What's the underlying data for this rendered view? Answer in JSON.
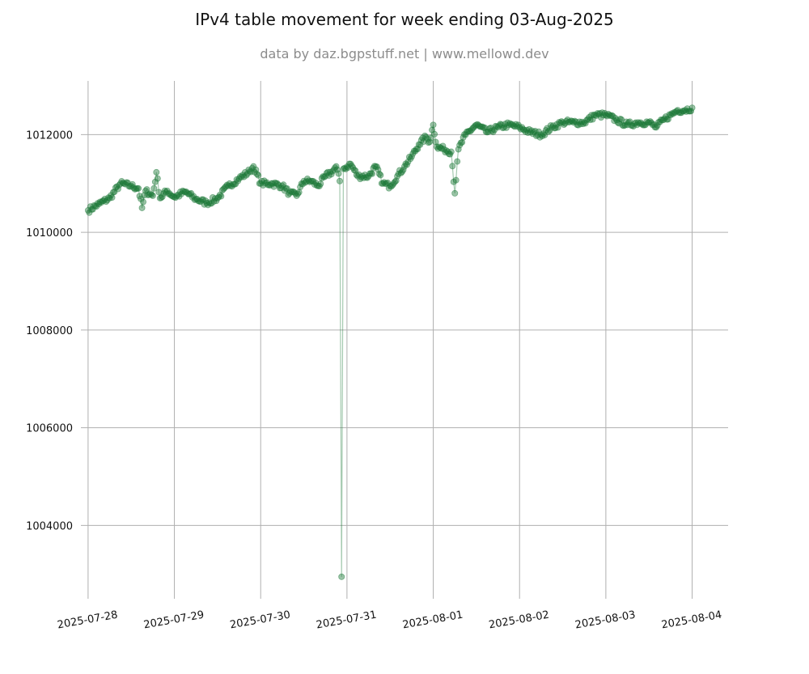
{
  "chart_data": {
    "type": "scatter",
    "title": "IPv4 table movement for week ending 03-Aug-2025",
    "subtitle": "data by daz.bgpstuff.net | www.mellowd.dev",
    "xlabel": "",
    "ylabel": "",
    "x_ticks": [
      "2025-07-28",
      "2025-07-29",
      "2025-07-30",
      "2025-07-31",
      "2025-08-01",
      "2025-08-02",
      "2025-08-03",
      "2025-08-04"
    ],
    "y_ticks": [
      1004000,
      1006000,
      1008000,
      1010000,
      1012000
    ],
    "xlim": [
      "2025-07-27 22:00",
      "2025-08-04 10:00"
    ],
    "ylim": [
      1002500,
      1013100
    ],
    "grid": true,
    "marker_color": "#1e7a3a",
    "subtitle_color": "#8c8c8c",
    "series": [
      {
        "points": [
          [
            "2025-07-28 00:00",
            1010450
          ],
          [
            "2025-07-28 03:00",
            1010580
          ],
          [
            "2025-07-28 06:00",
            1010700
          ],
          [
            "2025-07-28 09:00",
            1011000
          ],
          [
            "2025-07-28 12:00",
            1010950
          ],
          [
            "2025-07-28 14:00",
            1010900
          ],
          [
            "2025-07-28 15:00",
            1010500
          ],
          [
            "2025-07-28 16:00",
            1010850
          ],
          [
            "2025-07-28 18:00",
            1010750
          ],
          [
            "2025-07-28 19:00",
            1011230
          ],
          [
            "2025-07-28 20:00",
            1010700
          ],
          [
            "2025-07-28 22:00",
            1010850
          ],
          [
            "2025-07-29 00:00",
            1010720
          ],
          [
            "2025-07-29 03:00",
            1010830
          ],
          [
            "2025-07-29 06:00",
            1010680
          ],
          [
            "2025-07-29 09:00",
            1010600
          ],
          [
            "2025-07-29 12:00",
            1010700
          ],
          [
            "2025-07-29 15:00",
            1010950
          ],
          [
            "2025-07-29 18:00",
            1011100
          ],
          [
            "2025-07-29 21:00",
            1011250
          ],
          [
            "2025-07-29 22:00",
            1011350
          ],
          [
            "2025-07-30 00:00",
            1011000
          ],
          [
            "2025-07-30 03:00",
            1011000
          ],
          [
            "2025-07-30 06:00",
            1010950
          ],
          [
            "2025-07-30 08:00",
            1010800
          ],
          [
            "2025-07-30 10:00",
            1010750
          ],
          [
            "2025-07-30 12:00",
            1011050
          ],
          [
            "2025-07-30 14:00",
            1011050
          ],
          [
            "2025-07-30 16:00",
            1010950
          ],
          [
            "2025-07-30 18:00",
            1011150
          ],
          [
            "2025-07-30 20:00",
            1011250
          ],
          [
            "2025-07-30 21:00",
            1011350
          ],
          [
            "2025-07-30 22:00",
            1011050
          ],
          [
            "2025-07-30 22:30",
            1002950
          ],
          [
            "2025-07-30 23:00",
            1011300
          ],
          [
            "2025-07-31 01:00",
            1011400
          ],
          [
            "2025-07-31 03:00",
            1011150
          ],
          [
            "2025-07-31 06:00",
            1011150
          ],
          [
            "2025-07-31 08:00",
            1011350
          ],
          [
            "2025-07-31 10:00",
            1011000
          ],
          [
            "2025-07-31 12:00",
            1010950
          ],
          [
            "2025-07-31 14:00",
            1011150
          ],
          [
            "2025-07-31 16:00",
            1011350
          ],
          [
            "2025-07-31 18:00",
            1011550
          ],
          [
            "2025-07-31 20:00",
            1011800
          ],
          [
            "2025-07-31 22:00",
            1011950
          ],
          [
            "2025-07-31 23:00",
            1011850
          ],
          [
            "2025-08-01 00:00",
            1012200
          ],
          [
            "2025-08-01 01:00",
            1011750
          ],
          [
            "2025-08-01 03:00",
            1011700
          ],
          [
            "2025-08-01 05:00",
            1011650
          ],
          [
            "2025-08-01 06:00",
            1010800
          ],
          [
            "2025-08-01 07:00",
            1011700
          ],
          [
            "2025-08-01 09:00",
            1012000
          ],
          [
            "2025-08-01 12:00",
            1012200
          ],
          [
            "2025-08-01 15:00",
            1012050
          ],
          [
            "2025-08-01 18:00",
            1012150
          ],
          [
            "2025-08-01 21:00",
            1012200
          ],
          [
            "2025-08-02 00:00",
            1012150
          ],
          [
            "2025-08-02 03:00",
            1012050
          ],
          [
            "2025-08-02 06:00",
            1012000
          ],
          [
            "2025-08-02 09:00",
            1012150
          ],
          [
            "2025-08-02 12:00",
            1012250
          ],
          [
            "2025-08-02 15:00",
            1012250
          ],
          [
            "2025-08-02 18:00",
            1012250
          ],
          [
            "2025-08-02 21:00",
            1012400
          ],
          [
            "2025-08-03 00:00",
            1012400
          ],
          [
            "2025-08-03 03:00",
            1012300
          ],
          [
            "2025-08-03 06:00",
            1012200
          ],
          [
            "2025-08-03 09:00",
            1012250
          ],
          [
            "2025-08-03 12:00",
            1012250
          ],
          [
            "2025-08-03 14:00",
            1012150
          ],
          [
            "2025-08-03 16:00",
            1012300
          ],
          [
            "2025-08-03 18:00",
            1012400
          ],
          [
            "2025-08-03 20:00",
            1012500
          ],
          [
            "2025-08-03 22:00",
            1012500
          ],
          [
            "2025-08-04 00:00",
            1012550
          ]
        ]
      }
    ]
  }
}
